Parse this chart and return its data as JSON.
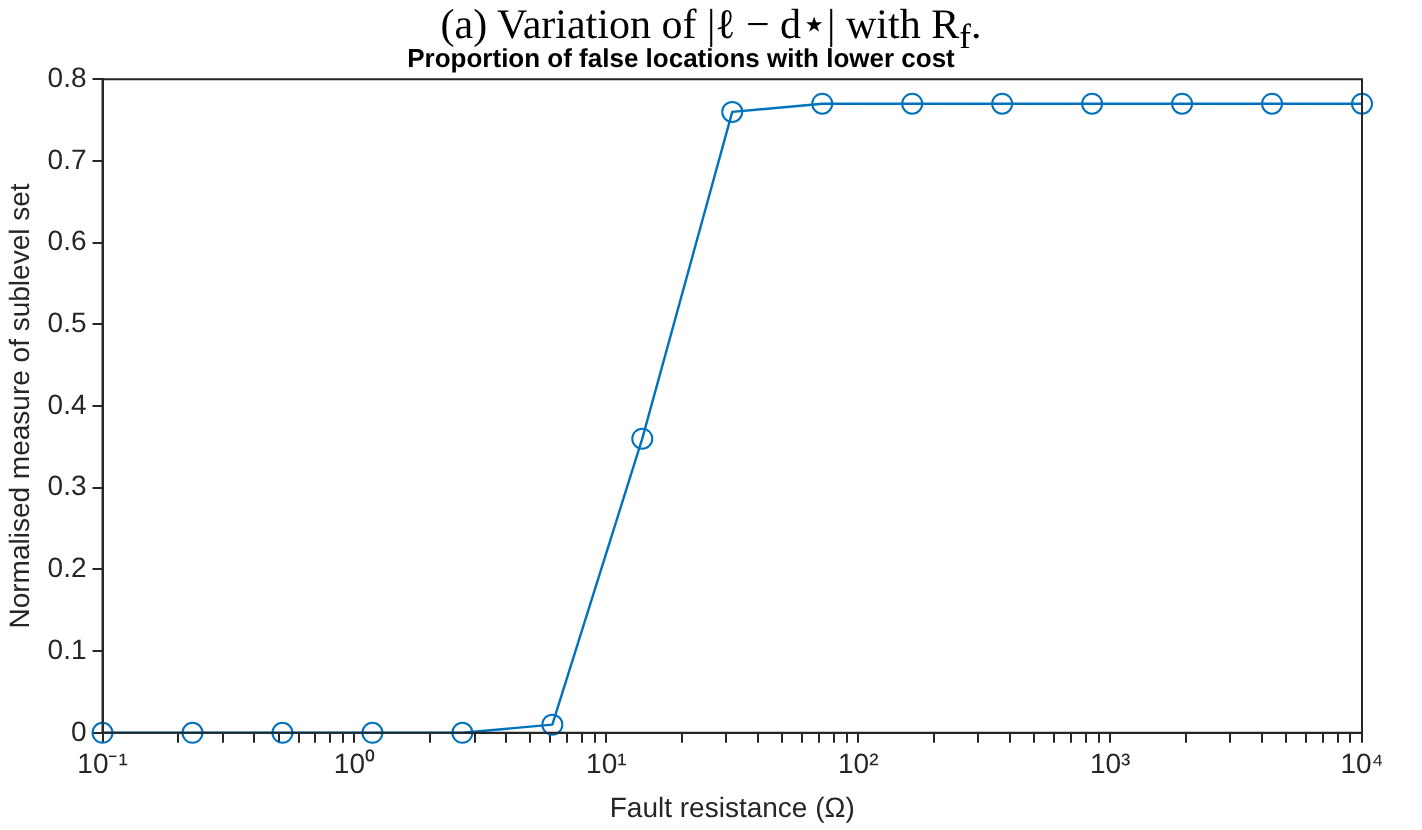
{
  "chart_data": {
    "type": "line",
    "title": "Proportion of false locations with lower cost",
    "xlabel": "Fault resistance (Ω)",
    "ylabel": "Normalised measure of sublevel set",
    "annotations": [
      "(a) Variation of |ℓ − d⋆| with R$_{f}$."
    ],
    "x": [
      0.1,
      0.2276,
      0.518,
      1.179,
      2.683,
      6.105,
      13.89,
      31.62,
      71.97,
      163.8,
      372.8,
      848.3,
      1931,
      4394,
      10000
    ],
    "series": [
      {
        "color": "#0072bd",
        "values": [
          0,
          0,
          0,
          0,
          0,
          0.01,
          0.36,
          0.76,
          0.77,
          0.77,
          0.77,
          0.77,
          0.77,
          0.77,
          0.77
        ]
      }
    ],
    "log": "x",
    "xlim": [
      0.1,
      10000
    ],
    "xticks": [
      {
        "value": 0.1,
        "label": "10⁻¹"
      },
      {
        "value": 0.2,
        "label": null
      },
      {
        "value": 0.3,
        "label": null
      },
      {
        "value": 0.4,
        "label": null
      },
      {
        "value": 0.5,
        "label": null
      },
      {
        "value": 0.6,
        "label": null
      },
      {
        "value": 0.7,
        "label": null
      },
      {
        "value": 0.8,
        "label": null
      },
      {
        "value": 0.9,
        "label": null
      },
      {
        "value": 1,
        "label": "10⁰"
      },
      {
        "value": 2,
        "label": null
      },
      {
        "value": 3,
        "label": null
      },
      {
        "value": 4,
        "label": null
      },
      {
        "value": 5,
        "label": null
      },
      {
        "value": 6,
        "label": null
      },
      {
        "value": 7,
        "label": null
      },
      {
        "value": 8,
        "label": null
      },
      {
        "value": 9,
        "label": null
      },
      {
        "value": 10,
        "label": "10¹"
      },
      {
        "value": 20,
        "label": null
      },
      {
        "value": 30,
        "label": null
      },
      {
        "value": 40,
        "label": null
      },
      {
        "value": 50,
        "label": null
      },
      {
        "value": 60,
        "label": null
      },
      {
        "value": 70,
        "label": null
      },
      {
        "value": 80,
        "label": null
      },
      {
        "value": 90,
        "label": null
      },
      {
        "value": 100,
        "label": "10²"
      },
      {
        "value": 200,
        "label": null
      },
      {
        "value": 300,
        "label": null
      },
      {
        "value": 400,
        "label": null
      },
      {
        "value": 500,
        "label": null
      },
      {
        "value": 600,
        "label": null
      },
      {
        "value": 700,
        "label": null
      },
      {
        "value": 800,
        "label": null
      },
      {
        "value": 900,
        "label": null
      },
      {
        "value": 1000,
        "label": "10³"
      },
      {
        "value": 2000,
        "label": null
      },
      {
        "value": 3000,
        "label": null
      },
      {
        "value": 4000,
        "label": null
      },
      {
        "value": 5000,
        "label": null
      },
      {
        "value": 6000,
        "label": null
      },
      {
        "value": 7000,
        "label": null
      },
      {
        "value": 8000,
        "label": null
      },
      {
        "value": 9000,
        "label": null
      },
      {
        "value": 10000,
        "label": "10⁴"
      }
    ],
    "ylim": [
      0,
      0.8
    ],
    "yticks": [
      0,
      0.1,
      0.2,
      0.3,
      0.4,
      0.5,
      0.6,
      0.7,
      0.8
    ],
    "grid": false,
    "legend": false,
    "marker": "circle",
    "line_style": "solid"
  }
}
